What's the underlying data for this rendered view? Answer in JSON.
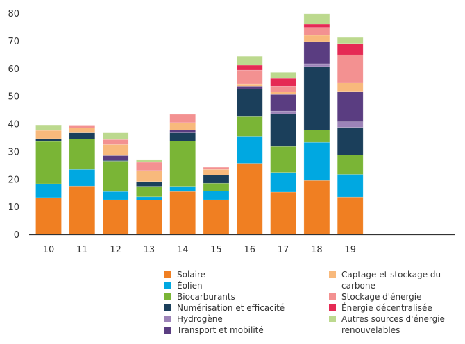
{
  "chart_data": {
    "type": "bar",
    "stacked": true,
    "title": "",
    "xlabel": "",
    "ylabel": "",
    "ylim": [
      0,
      80
    ],
    "yticks": [
      0,
      10,
      20,
      30,
      40,
      50,
      60,
      70,
      80
    ],
    "grid": false,
    "legend_position": "bottom-right",
    "categories": [
      "10",
      "11",
      "12",
      "13",
      "14",
      "15",
      "16",
      "17",
      "18",
      "19"
    ],
    "series": [
      {
        "name": "Solaire",
        "color": "#F07F22",
        "values": [
          13.3,
          17.5,
          12.5,
          12.4,
          15.5,
          12.5,
          25.7,
          15.3,
          19.5,
          13.5
        ]
      },
      {
        "name": "Éolien",
        "color": "#00A8E1",
        "values": [
          5.0,
          6.0,
          3.0,
          1.2,
          1.9,
          3.2,
          9.8,
          7.1,
          13.8,
          8.2
        ]
      },
      {
        "name": "Biocarburants",
        "color": "#7AB536",
        "values": [
          15.3,
          11.0,
          11.0,
          3.8,
          16.3,
          2.8,
          7.3,
          9.4,
          4.4,
          7.0
        ]
      },
      {
        "name": "Numérisation et efficacité",
        "color": "#1B3F5B",
        "values": [
          1.0,
          2.2,
          0.3,
          1.7,
          3.0,
          3.0,
          9.8,
          11.8,
          23.0,
          10.0
        ]
      },
      {
        "name": "Hydrogène",
        "color": "#9C83B8",
        "values": [
          0,
          0,
          0,
          0,
          0,
          0,
          0,
          1.0,
          1.0,
          2.0
        ]
      },
      {
        "name": "Transport et mobilité",
        "color": "#5A3D81",
        "values": [
          0,
          0,
          1.7,
          0,
          1.0,
          0,
          1.0,
          6.0,
          8.0,
          11.0
        ]
      },
      {
        "name": "Captage et stockage du carbone",
        "color": "#F8B97C",
        "values": [
          3.0,
          1.8,
          4.0,
          4.0,
          2.7,
          2.0,
          0.8,
          1.0,
          2.3,
          3.2
        ]
      },
      {
        "name": "Stockage d'énergie",
        "color": "#F39191",
        "values": [
          0,
          1.0,
          1.8,
          3.0,
          3.0,
          0.8,
          5.0,
          2.0,
          2.8,
          10.0
        ]
      },
      {
        "name": "Énergie décentralisée",
        "color": "#E52A54",
        "values": [
          0,
          0,
          0,
          0,
          0,
          0,
          1.8,
          2.8,
          1.2,
          4.1
        ]
      },
      {
        "name": "Autres sources d'énergie renouvelables",
        "color": "#BCD98E",
        "values": [
          2.0,
          0,
          2.4,
          1.0,
          0,
          0,
          3.2,
          2.2,
          3.8,
          2.2
        ]
      }
    ]
  },
  "legend": {
    "col1": [
      0,
      1,
      2,
      3,
      4,
      5
    ],
    "col2": [
      6,
      7,
      8,
      9
    ]
  }
}
